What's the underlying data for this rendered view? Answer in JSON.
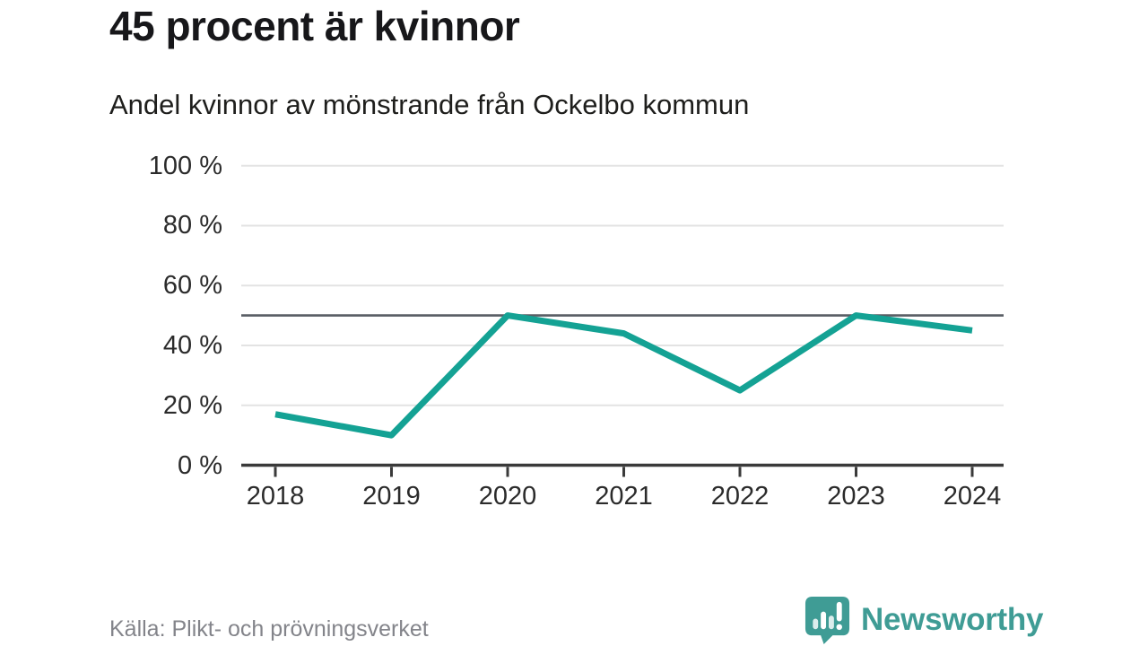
{
  "header": {
    "title": "45 procent är kvinnor",
    "subtitle": "Andel kvinnor av mönstrande från Ockelbo kommun"
  },
  "chart_data": {
    "type": "line",
    "title": "45 procent är kvinnor",
    "subtitle": "Andel kvinnor av mönstrande från Ockelbo kommun",
    "x": [
      "2018",
      "2019",
      "2020",
      "2021",
      "2022",
      "2023",
      "2024"
    ],
    "series": [
      {
        "name": "Andel kvinnor av mönstrande",
        "values": [
          17,
          10,
          50,
          44,
          25,
          50,
          45
        ]
      }
    ],
    "reference_line": 50,
    "ylim": [
      0,
      100
    ],
    "y_ticks": [
      0,
      20,
      40,
      60,
      80,
      100
    ],
    "y_tick_labels": [
      "0 %",
      "20 %",
      "40 %",
      "60 %",
      "80 %",
      "100 %"
    ],
    "grid": true,
    "legend": "none",
    "colors": {
      "line": "#14a294",
      "reference": "#585d64",
      "grid": "#e3e3e3",
      "axis": "#3a3a3a"
    }
  },
  "footer": {
    "source": "Källa: Plikt- och prövningsverket",
    "brand": "Newsworthy",
    "brand_color": "#3f9c95"
  }
}
